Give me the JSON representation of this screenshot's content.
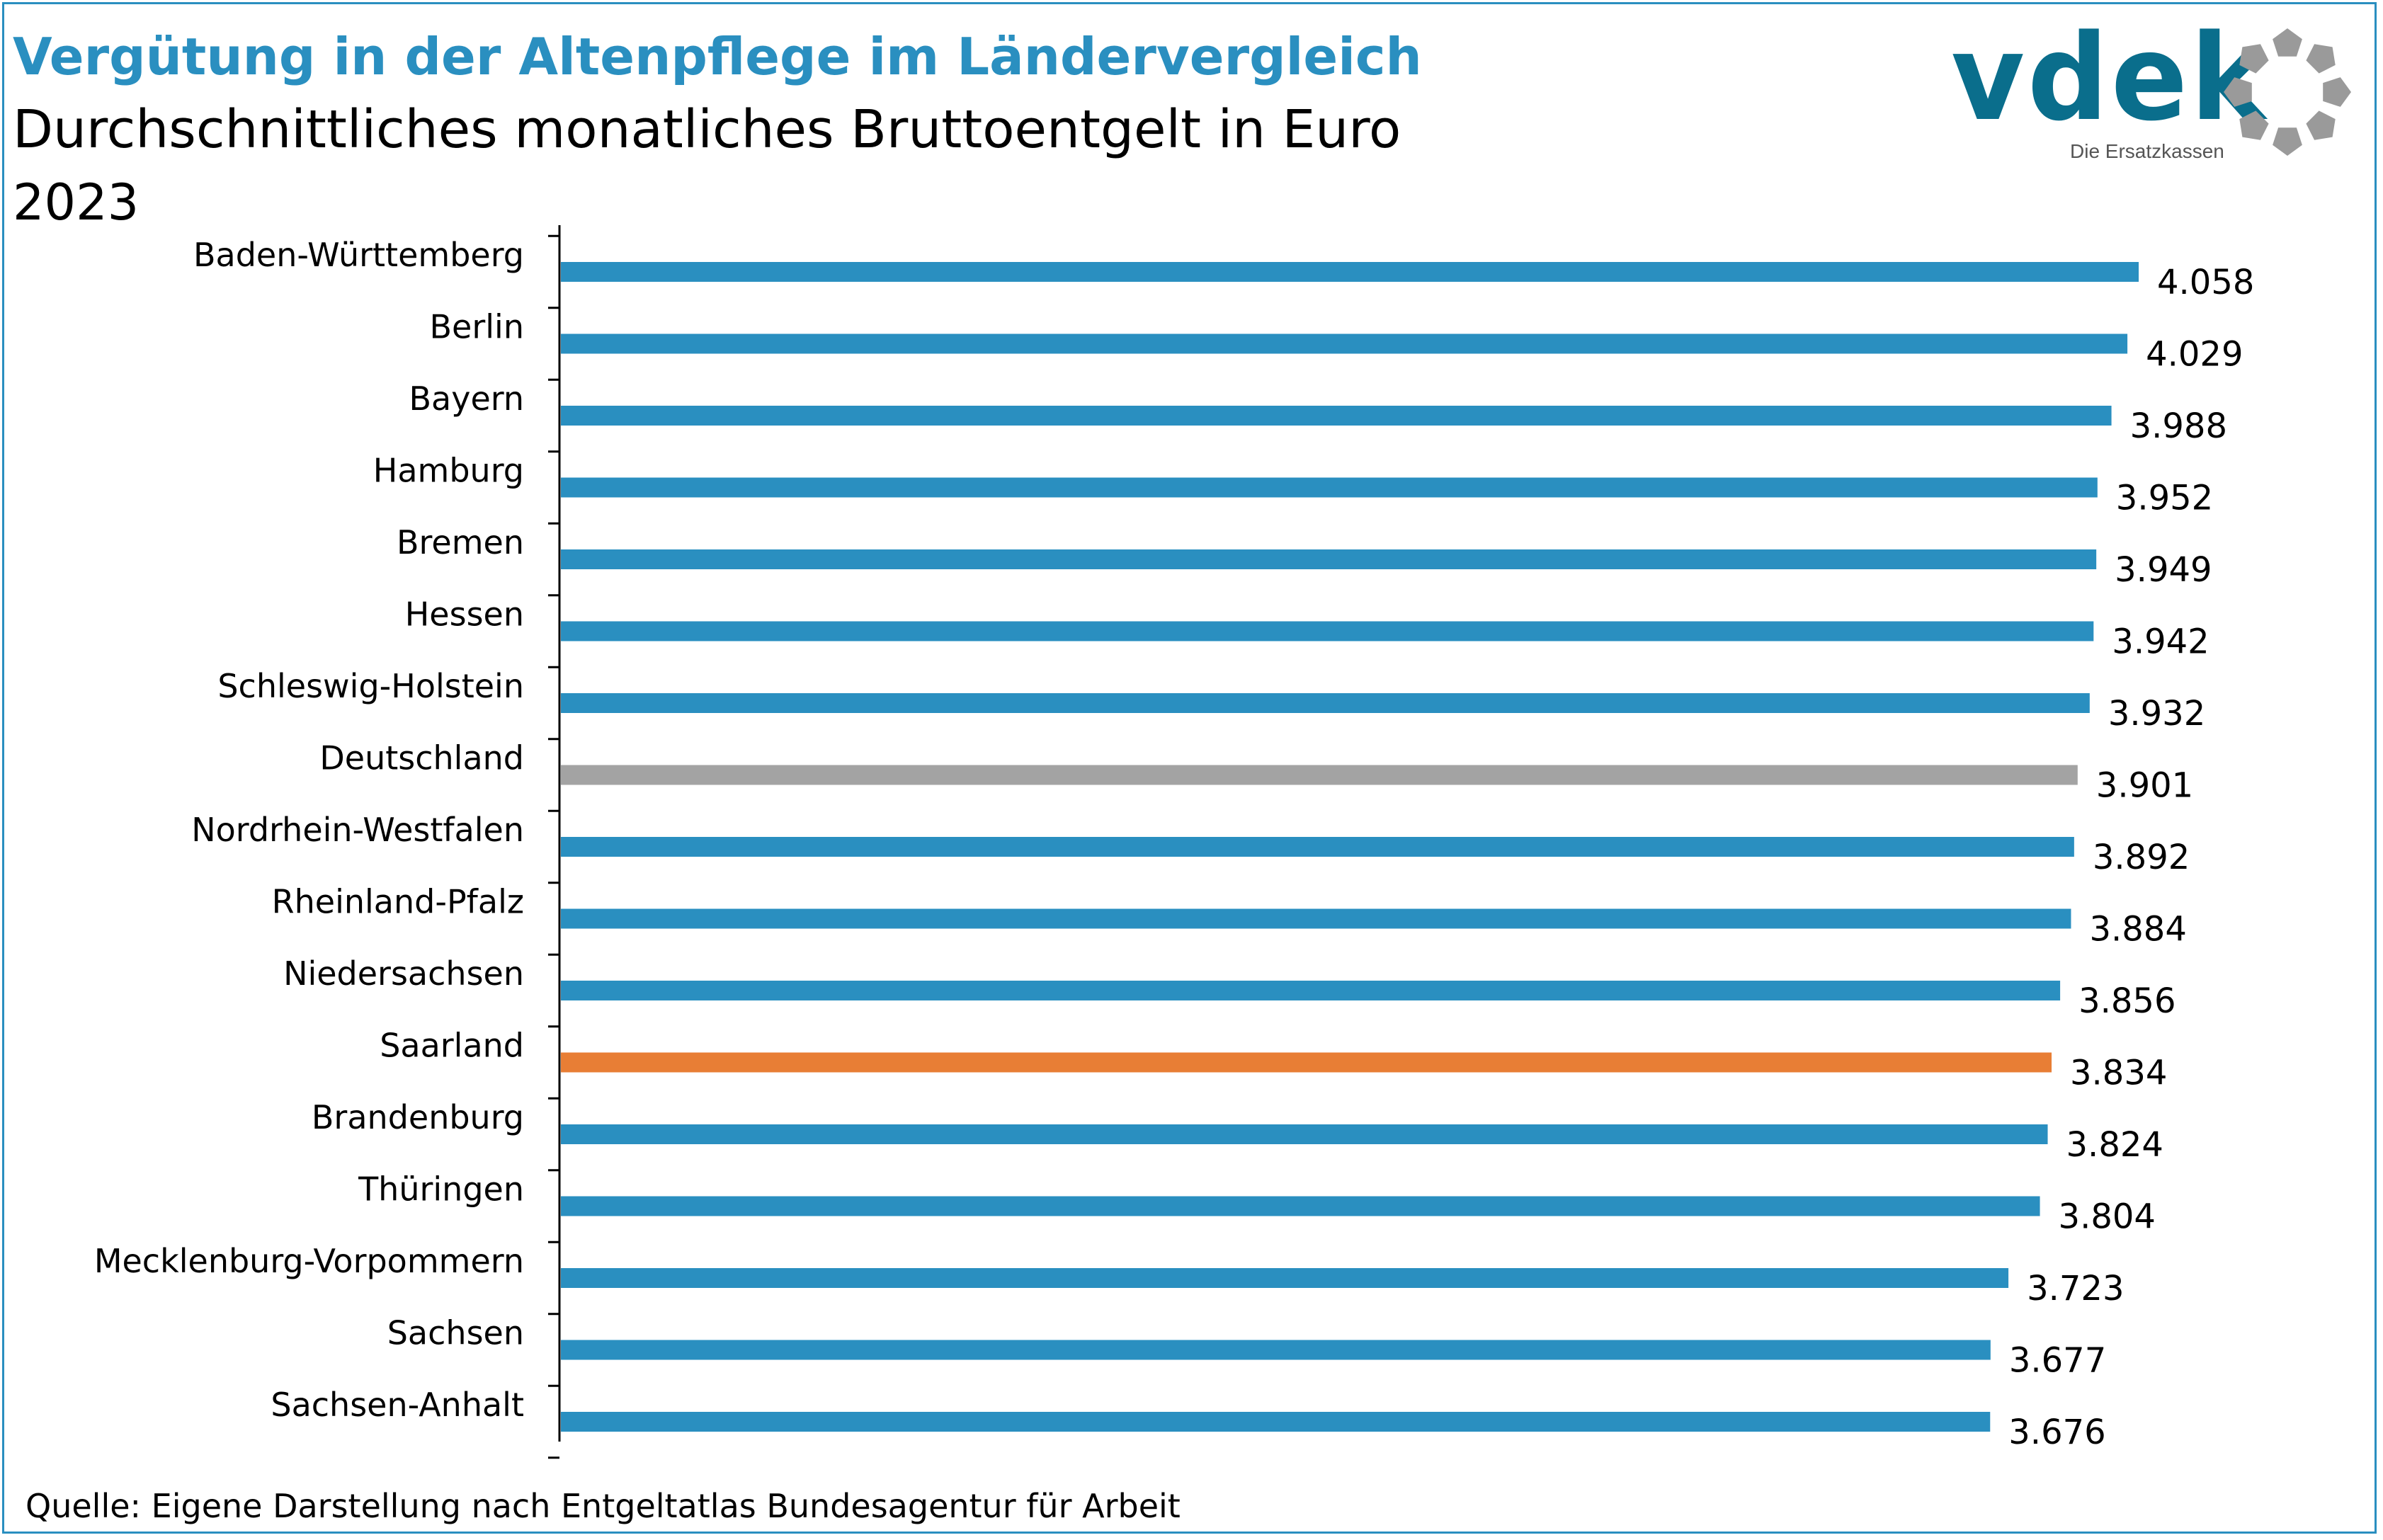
{
  "header": {
    "title": "Vergütung in der Altenpflege im Ländervergleich",
    "subtitle": "Durchschnittliches monatliches Bruttoentgelt in Euro",
    "year": "2023"
  },
  "logo": {
    "word": "vdek",
    "tagline": "Die Ersatzkassen"
  },
  "footer": {
    "source": "Quelle: Eigene Darstellung nach Entgeltatlas Bundesagentur für Arbeit"
  },
  "colors": {
    "accent": "#2a8fc0",
    "default_bar": "#2a8fc0",
    "germany_bar": "#a3a3a3",
    "saarland_bar": "#e87e35",
    "logo_blue": "#0a6e8c",
    "logo_gray": "#9a9a9a"
  },
  "chart_data": {
    "type": "bar",
    "orientation": "horizontal",
    "categories": [
      "Baden-Württemberg",
      "Berlin",
      "Bayern",
      "Hamburg",
      "Bremen",
      "Hessen",
      "Schleswig-Holstein",
      "Deutschland",
      "Nordrhein-Westfalen",
      "Rheinland-Pfalz",
      "Niedersachsen",
      "Saarland",
      "Brandenburg",
      "Thüringen",
      "Mecklenburg-Vorpommern",
      "Sachsen",
      "Sachsen-Anhalt"
    ],
    "values": [
      4058,
      4029,
      3988,
      3952,
      3949,
      3942,
      3932,
      3901,
      3892,
      3884,
      3856,
      3834,
      3824,
      3804,
      3723,
      3677,
      3676
    ],
    "value_labels": [
      "4.058",
      "4.029",
      "3.988",
      "3.952",
      "3.949",
      "3.942",
      "3.932",
      "3.901",
      "3.892",
      "3.884",
      "3.856",
      "3.834",
      "3.824",
      "3.804",
      "3.723",
      "3.677",
      "3.676"
    ],
    "highlight": {
      "Deutschland": "#a3a3a3",
      "Saarland": "#e87e35"
    },
    "xlim": [
      0,
      4058
    ],
    "grid": false,
    "legend": "none",
    "title": "Vergütung in der Altenpflege im Ländervergleich"
  }
}
